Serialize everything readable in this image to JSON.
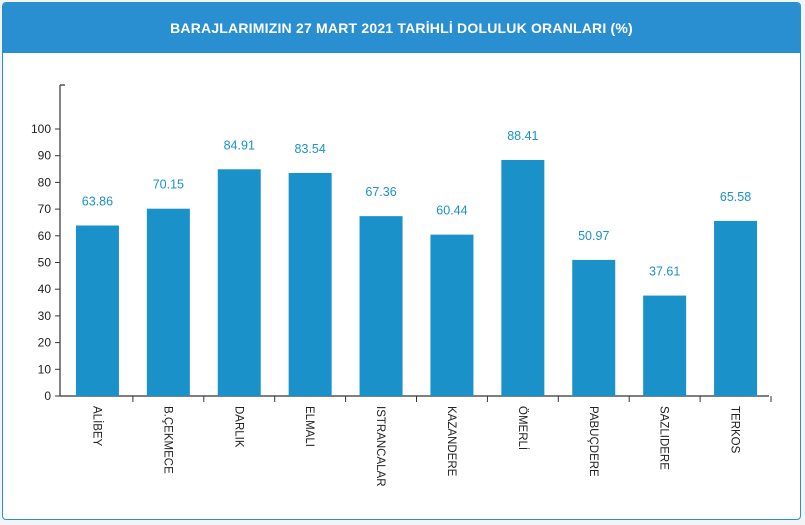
{
  "chart_data": {
    "type": "bar",
    "title": "BARAJLARIMIZIN 27 MART 2021 TARİHLİ DOLULUK ORANLARI (%)",
    "categories": [
      "ALİBEY",
      "B.ÇEKMECE",
      "DARLIK",
      "ELMALI",
      "ISTRANCALAR",
      "KAZANDERE",
      "ÖMERLİ",
      "PABUÇDERE",
      "SAZLIDERE",
      "TERKOS"
    ],
    "values": [
      63.86,
      70.15,
      84.91,
      83.54,
      67.36,
      60.44,
      88.41,
      50.97,
      37.61,
      65.58
    ],
    "value_labels": [
      "63.86",
      "70.15",
      "84.91",
      "83.54",
      "67.36",
      "60.44",
      "88.41",
      "50.97",
      "37.61",
      "65.58"
    ],
    "yticks": [
      "0",
      "10",
      "20",
      "30",
      "40",
      "50",
      "60",
      "70",
      "80",
      "90",
      "100"
    ],
    "ylim": [
      0,
      100
    ],
    "xlabel": "",
    "ylabel": "",
    "grid": false,
    "colors": {
      "bar": "#1a92c9",
      "header": "#2a8fd0",
      "value_label": "#1a92c9",
      "axis": "#333333"
    }
  }
}
